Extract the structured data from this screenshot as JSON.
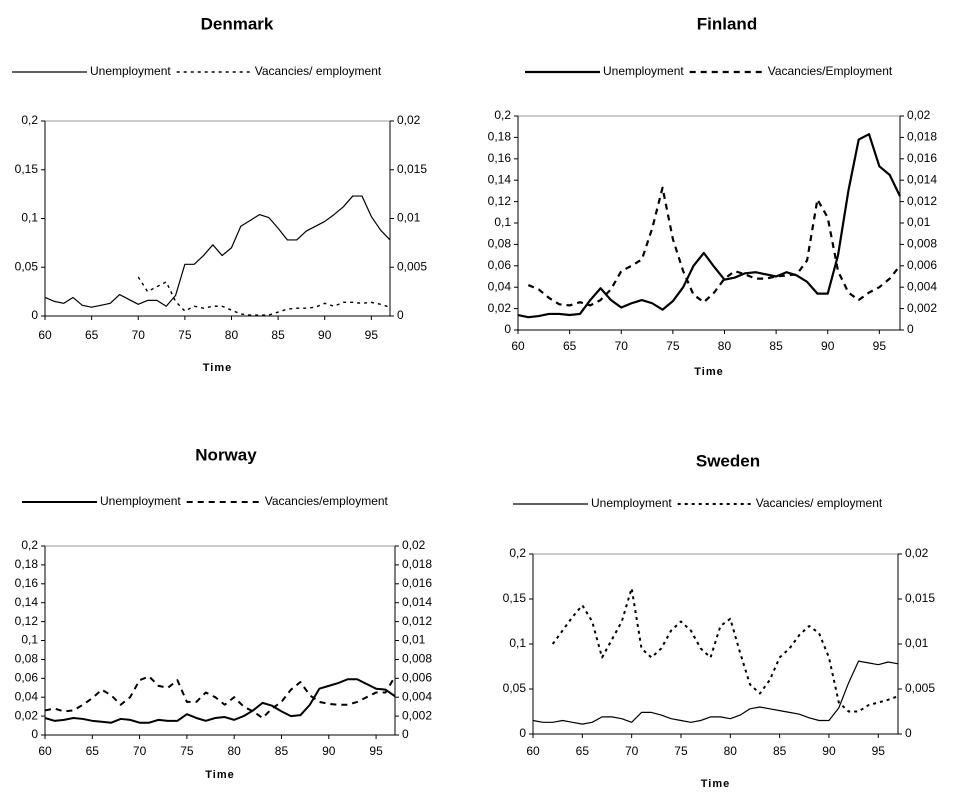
{
  "chart_data": [
    {
      "type": "line",
      "title": "Denmark",
      "x_label": "Time",
      "x": [
        60,
        61,
        62,
        63,
        64,
        65,
        66,
        67,
        68,
        69,
        70,
        71,
        72,
        73,
        74,
        75,
        76,
        77,
        78,
        79,
        80,
        81,
        82,
        83,
        84,
        85,
        86,
        87,
        88,
        89,
        90,
        91,
        92,
        93,
        94,
        95,
        96,
        97
      ],
      "xlim": [
        60,
        97
      ],
      "xticks": [
        60,
        65,
        70,
        75,
        80,
        85,
        90,
        95
      ],
      "ylim": [
        0,
        0.2
      ],
      "yticks": [
        0,
        {
          "value": 0.05,
          "label": "0,05"
        },
        {
          "value": 0.1,
          "label": "0,1"
        },
        {
          "value": 0.15,
          "label": "0,15"
        },
        {
          "value": 0.2,
          "label": "0,2"
        }
      ],
      "y2lim": [
        0,
        0.02
      ],
      "y2ticks": [
        0,
        {
          "value": 0.005,
          "label": "0,005"
        },
        {
          "value": 0.01,
          "label": "0,01"
        },
        {
          "value": 0.015,
          "label": "0,015"
        },
        {
          "value": 0.02,
          "label": "0,02"
        }
      ],
      "series": [
        {
          "name": "Unemployment",
          "color": "#000000",
          "line_style": "solid",
          "values": [
            0.019,
            0.015,
            0.013,
            0.019,
            0.011,
            0.009,
            0.011,
            0.013,
            0.022,
            0.017,
            0.012,
            0.016,
            0.016,
            0.01,
            0.021,
            0.053,
            0.053,
            0.062,
            0.073,
            0.062,
            0.07,
            0.092,
            0.098,
            0.104,
            0.101,
            0.09,
            0.078,
            0.078,
            0.087,
            0.092,
            0.097,
            0.104,
            0.112,
            0.123,
            0.123,
            0.102,
            0.088,
            0.078
          ]
        },
        {
          "name": "Vacancies/ employment",
          "color": "#000000",
          "line_style": "dotted",
          "axis": "y2",
          "values": [
            null,
            null,
            null,
            null,
            null,
            null,
            null,
            null,
            null,
            null,
            0.004,
            0.0025,
            0.003,
            0.0035,
            0.0015,
            0.0005,
            0.001,
            0.0008,
            0.001,
            0.001,
            0.0006,
            0.0002,
            0.0001,
            0.0001,
            0.0001,
            0.0004,
            0.0007,
            0.0008,
            0.0008,
            0.0009,
            0.0013,
            0.001,
            0.0014,
            0.0014,
            0.0013,
            0.0014,
            0.0012,
            0.0009
          ]
        }
      ]
    },
    {
      "type": "line",
      "title": "Finland",
      "x_label": "Time",
      "x": [
        60,
        61,
        62,
        63,
        64,
        65,
        66,
        67,
        68,
        69,
        70,
        71,
        72,
        73,
        74,
        75,
        76,
        77,
        78,
        79,
        80,
        81,
        82,
        83,
        84,
        85,
        86,
        87,
        88,
        89,
        90,
        91,
        92,
        93,
        94,
        95,
        96,
        97
      ],
      "xlim": [
        60,
        97
      ],
      "xticks": [
        60,
        65,
        70,
        75,
        80,
        85,
        90,
        95
      ],
      "ylim": [
        0,
        0.2
      ],
      "yticks": [
        0,
        {
          "value": 0.02,
          "label": "0,02"
        },
        {
          "value": 0.04,
          "label": "0,04"
        },
        {
          "value": 0.06,
          "label": "0,06"
        },
        {
          "value": 0.08,
          "label": "0,08"
        },
        {
          "value": 0.1,
          "label": "0,1"
        },
        {
          "value": 0.12,
          "label": "0,12"
        },
        {
          "value": 0.14,
          "label": "0,14"
        },
        {
          "value": 0.16,
          "label": "0,16"
        },
        {
          "value": 0.18,
          "label": "0,18"
        },
        {
          "value": 0.2,
          "label": "0,2"
        }
      ],
      "y2lim": [
        0,
        0.02
      ],
      "y2ticks": [
        0,
        {
          "value": 0.002,
          "label": "0,002"
        },
        {
          "value": 0.004,
          "label": "0,004"
        },
        {
          "value": 0.006,
          "label": "0,006"
        },
        {
          "value": 0.008,
          "label": "0,008"
        },
        {
          "value": 0.01,
          "label": "0,01"
        },
        {
          "value": 0.012,
          "label": "0,012"
        },
        {
          "value": 0.014,
          "label": "0,014"
        },
        {
          "value": 0.016,
          "label": "0,016"
        },
        {
          "value": 0.018,
          "label": "0,018"
        },
        {
          "value": 0.02,
          "label": "0,02"
        }
      ],
      "series": [
        {
          "name": "Unemployment",
          "color": "#000000",
          "line_style": "solid",
          "values": [
            0.014,
            0.012,
            0.013,
            0.015,
            0.015,
            0.014,
            0.015,
            0.028,
            0.039,
            0.028,
            0.021,
            0.025,
            0.028,
            0.025,
            0.019,
            0.027,
            0.04,
            0.06,
            0.072,
            0.059,
            0.047,
            0.049,
            0.053,
            0.054,
            0.052,
            0.05,
            0.054,
            0.051,
            0.045,
            0.034,
            0.034,
            0.07,
            0.13,
            0.178,
            0.183,
            0.153,
            0.145,
            0.125
          ]
        },
        {
          "name": "Vacancies/Employment",
          "color": "#000000",
          "line_style": "dashed",
          "axis": "y2",
          "values": [
            null,
            0.0042,
            0.0038,
            0.003,
            0.0024,
            0.0023,
            0.0026,
            0.0023,
            0.0028,
            0.0038,
            0.0055,
            0.006,
            0.0066,
            0.0095,
            0.0133,
            0.0085,
            0.0055,
            0.0033,
            0.0026,
            0.0035,
            0.0048,
            0.0055,
            0.0052,
            0.0048,
            0.0048,
            0.005,
            0.0051,
            0.0052,
            0.0065,
            0.0122,
            0.0105,
            0.0055,
            0.0035,
            0.0028,
            0.0035,
            0.004,
            0.0048,
            0.006
          ]
        }
      ]
    },
    {
      "type": "line",
      "title": "Norway",
      "x_label": "Time",
      "x": [
        60,
        61,
        62,
        63,
        64,
        65,
        66,
        67,
        68,
        69,
        70,
        71,
        72,
        73,
        74,
        75,
        76,
        77,
        78,
        79,
        80,
        81,
        82,
        83,
        84,
        85,
        86,
        87,
        88,
        89,
        90,
        91,
        92,
        93,
        94,
        95,
        96,
        97
      ],
      "xlim": [
        60,
        97
      ],
      "xticks": [
        60,
        65,
        70,
        75,
        80,
        85,
        90,
        95
      ],
      "ylim": [
        0,
        0.2
      ],
      "yticks": [
        0,
        {
          "value": 0.02,
          "label": "0,02"
        },
        {
          "value": 0.04,
          "label": "0,04"
        },
        {
          "value": 0.06,
          "label": "0,06"
        },
        {
          "value": 0.08,
          "label": "0,08"
        },
        {
          "value": 0.1,
          "label": "0,1"
        },
        {
          "value": 0.12,
          "label": "0,12"
        },
        {
          "value": 0.14,
          "label": "0,14"
        },
        {
          "value": 0.16,
          "label": "0,16"
        },
        {
          "value": 0.18,
          "label": "0,18"
        },
        {
          "value": 0.2,
          "label": "0,2"
        }
      ],
      "y2lim": [
        0,
        0.02
      ],
      "y2ticks": [
        0,
        {
          "value": 0.002,
          "label": "0,002"
        },
        {
          "value": 0.004,
          "label": "0,004"
        },
        {
          "value": 0.006,
          "label": "0,006"
        },
        {
          "value": 0.008,
          "label": "0,008"
        },
        {
          "value": 0.01,
          "label": "0,01"
        },
        {
          "value": 0.012,
          "label": "0,012"
        },
        {
          "value": 0.014,
          "label": "0,014"
        },
        {
          "value": 0.016,
          "label": "0,016"
        },
        {
          "value": 0.018,
          "label": "0,018"
        },
        {
          "value": 0.02,
          "label": "0,02"
        }
      ],
      "series": [
        {
          "name": "Unemployment",
          "color": "#000000",
          "line_style": "solid",
          "values": [
            0.018,
            0.015,
            0.016,
            0.018,
            0.017,
            0.015,
            0.014,
            0.013,
            0.017,
            0.016,
            0.013,
            0.013,
            0.016,
            0.015,
            0.015,
            0.022,
            0.018,
            0.015,
            0.018,
            0.019,
            0.016,
            0.02,
            0.026,
            0.034,
            0.031,
            0.025,
            0.02,
            0.021,
            0.032,
            0.049,
            0.052,
            0.055,
            0.059,
            0.059,
            0.054,
            0.049,
            0.048,
            0.041
          ]
        },
        {
          "name": "Vacancies/employment",
          "color": "#000000",
          "line_style": "dashed",
          "axis": "y2",
          "values": [
            0.0026,
            0.0028,
            0.0025,
            0.0026,
            0.0032,
            0.0039,
            0.0048,
            0.0042,
            0.0032,
            0.004,
            0.0058,
            0.0062,
            0.0052,
            0.005,
            0.0058,
            0.0035,
            0.0035,
            0.0045,
            0.004,
            0.0032,
            0.004,
            0.003,
            0.0025,
            0.0018,
            0.0028,
            0.0035,
            0.0048,
            0.0056,
            0.0042,
            0.0035,
            0.0033,
            0.0032,
            0.0032,
            0.0035,
            0.004,
            0.0045,
            0.0045,
            0.0062
          ]
        }
      ]
    },
    {
      "type": "line",
      "title": "Sweden",
      "x_label": "Time",
      "x": [
        60,
        61,
        62,
        63,
        64,
        65,
        66,
        67,
        68,
        69,
        70,
        71,
        72,
        73,
        74,
        75,
        76,
        77,
        78,
        79,
        80,
        81,
        82,
        83,
        84,
        85,
        86,
        87,
        88,
        89,
        90,
        91,
        92,
        93,
        94,
        95,
        96,
        97
      ],
      "xlim": [
        60,
        97
      ],
      "xticks": [
        60,
        65,
        70,
        75,
        80,
        85,
        90,
        95
      ],
      "ylim": [
        0,
        0.2
      ],
      "yticks": [
        0,
        {
          "value": 0.05,
          "label": "0,05"
        },
        {
          "value": 0.1,
          "label": "0,1"
        },
        {
          "value": 0.15,
          "label": "0,15"
        },
        {
          "value": 0.2,
          "label": "0,2"
        }
      ],
      "y2lim": [
        0,
        0.02
      ],
      "y2ticks": [
        0,
        {
          "value": 0.005,
          "label": "0,005"
        },
        {
          "value": 0.01,
          "label": "0,01"
        },
        {
          "value": 0.015,
          "label": "0,015"
        },
        {
          "value": 0.02,
          "label": "0,02"
        }
      ],
      "series": [
        {
          "name": "Unemployment",
          "color": "#000000",
          "line_style": "solid",
          "values": [
            0.015,
            0.013,
            0.013,
            0.015,
            0.013,
            0.011,
            0.013,
            0.019,
            0.019,
            0.017,
            0.013,
            0.024,
            0.024,
            0.021,
            0.017,
            0.015,
            0.013,
            0.015,
            0.019,
            0.019,
            0.017,
            0.021,
            0.028,
            0.03,
            0.028,
            0.026,
            0.024,
            0.022,
            0.018,
            0.015,
            0.015,
            0.029,
            0.057,
            0.081,
            0.079,
            0.077,
            0.08,
            0.078
          ]
        },
        {
          "name": "Vacancies/ employment",
          "color": "#000000",
          "line_style": "dotted",
          "axis": "y2",
          "values": [
            null,
            null,
            0.01,
            0.0115,
            0.013,
            0.0143,
            0.0125,
            0.0085,
            0.0105,
            0.0125,
            0.0162,
            0.0095,
            0.0085,
            0.0095,
            0.0115,
            0.0125,
            0.0115,
            0.0095,
            0.0085,
            0.012,
            0.0128,
            0.009,
            0.0055,
            0.0045,
            0.006,
            0.0085,
            0.0095,
            0.011,
            0.012,
            0.0112,
            0.0085,
            0.0035,
            0.0025,
            0.0025,
            0.0032,
            0.0035,
            0.0038,
            0.0042
          ]
        }
      ]
    }
  ]
}
